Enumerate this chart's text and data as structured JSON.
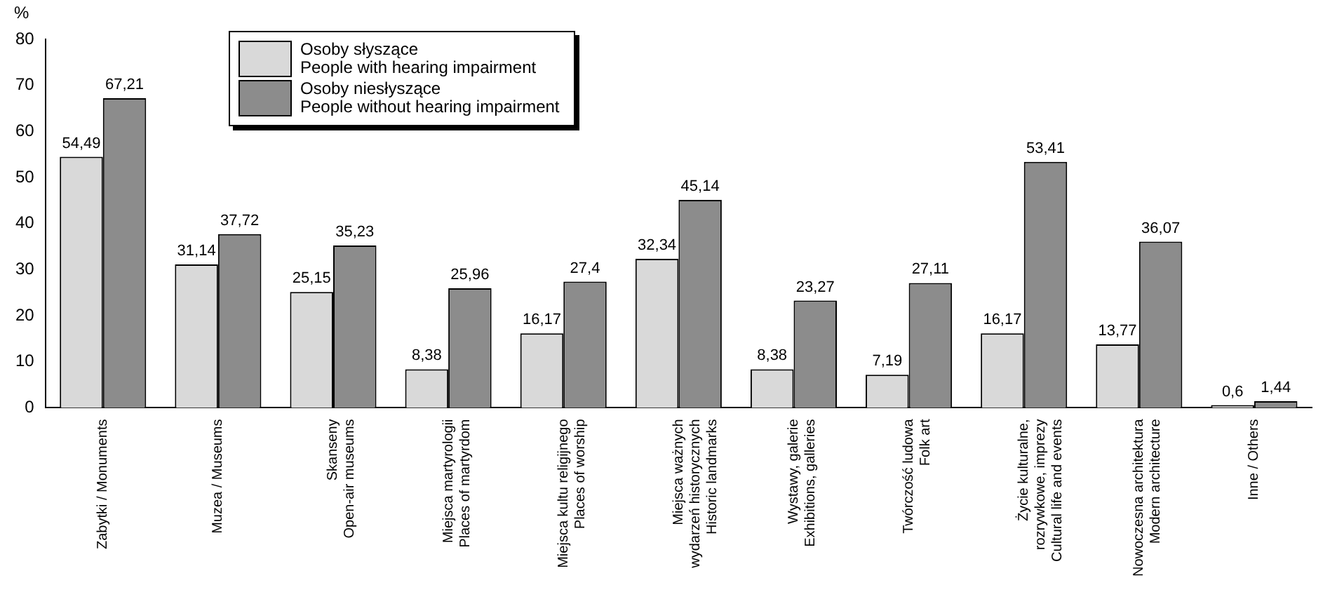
{
  "chart_data": {
    "type": "bar",
    "ylabel": "%",
    "categories": [
      "Zabytki / Monuments",
      "Muzea / Museums",
      "Skanseny\nOpen-air museums",
      "Miejsca martyrologii\nPlaces of martyrdom",
      "Miejsca kultu religijnego\nPlaces of worship",
      "Miejsca ważnych\nwydarzeń historycznych\nHistoric landmarks",
      "Wystawy, galerie\nExhibitions, galleries",
      "Twórczość ludowa\nFolk art",
      "Życie kulturalne,\nrozrywkowe, imprezy\nCultural life and events",
      "Nowoczesna architektura\nModern architecture",
      "Inne / Others"
    ],
    "series": [
      {
        "name": "Osoby słyszące\nPeople with hearing impairment",
        "color": "#d9d9d9",
        "values": [
          54.49,
          31.14,
          25.15,
          8.38,
          16.17,
          32.34,
          8.38,
          7.19,
          16.17,
          13.77,
          0.6
        ],
        "value_labels": [
          "54,49",
          "31,14",
          "25,15",
          "8,38",
          "16,17",
          "32,34",
          "8,38",
          "7,19",
          "16,17",
          "13,77",
          "0,6"
        ]
      },
      {
        "name": "Osoby niesłyszące\nPeople without hearing impairment",
        "color": "#8c8c8c",
        "values": [
          67.21,
          37.72,
          35.23,
          25.96,
          27.4,
          45.14,
          23.27,
          27.11,
          53.41,
          36.07,
          1.44
        ],
        "value_labels": [
          "67,21",
          "37,72",
          "35,23",
          "25,96",
          "27,4",
          "45,14",
          "23,27",
          "27,11",
          "53,41",
          "36,07",
          "1,44"
        ]
      }
    ],
    "ylim": [
      0,
      80
    ],
    "yticks": [
      0,
      10,
      20,
      30,
      40,
      50,
      60,
      70,
      80
    ],
    "grid": false,
    "legend": "top left"
  }
}
